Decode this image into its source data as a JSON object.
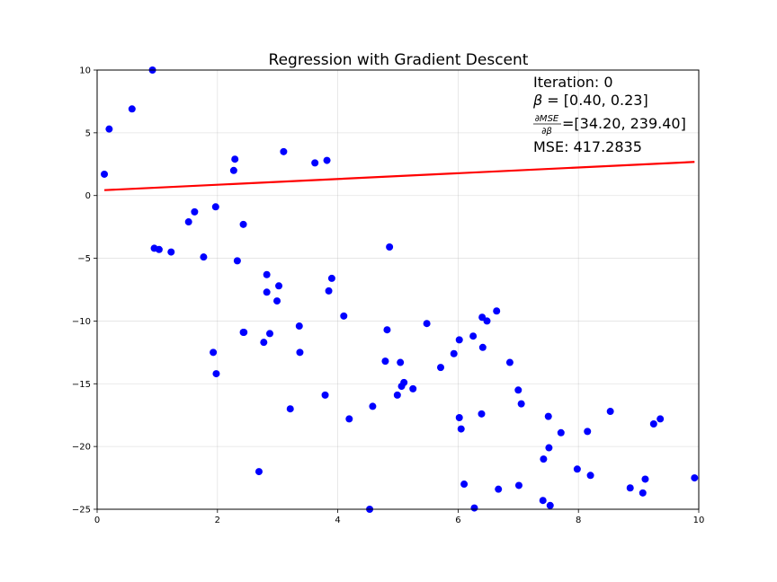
{
  "chart_data": {
    "type": "scatter",
    "title": "Regression with Gradient Descent",
    "xlabel": "",
    "ylabel": "",
    "xlim": [
      0,
      10
    ],
    "ylim": [
      -25,
      10
    ],
    "x_ticks": [
      0,
      2,
      4,
      6,
      8,
      10
    ],
    "y_ticks": [
      10,
      5,
      0,
      -5,
      -10,
      -15,
      -20,
      -25
    ],
    "x_tick_labels": [
      "0",
      "2",
      "4",
      "6",
      "8",
      "10"
    ],
    "y_tick_labels": [
      "10",
      "5",
      "0",
      "−5",
      "−10",
      "−15",
      "−20",
      "−25"
    ],
    "grid": true,
    "colors": {
      "points": "#0000ff",
      "line": "#ff0000"
    },
    "points": [
      [
        0.12,
        1.7
      ],
      [
        0.2,
        5.3
      ],
      [
        0.58,
        6.9
      ],
      [
        0.92,
        10.0
      ],
      [
        0.95,
        -4.2
      ],
      [
        1.03,
        -4.3
      ],
      [
        1.23,
        -4.5
      ],
      [
        1.52,
        -2.1
      ],
      [
        1.62,
        -1.3
      ],
      [
        1.77,
        -4.9
      ],
      [
        1.93,
        -12.5
      ],
      [
        1.97,
        -0.9
      ],
      [
        1.98,
        -14.2
      ],
      [
        2.27,
        2.0
      ],
      [
        2.29,
        2.9
      ],
      [
        2.33,
        -5.2
      ],
      [
        2.43,
        -2.3
      ],
      [
        2.44,
        -10.9
      ],
      [
        2.43,
        -10.9
      ],
      [
        2.69,
        -22.0
      ],
      [
        2.77,
        -11.7
      ],
      [
        2.82,
        -6.3
      ],
      [
        2.82,
        -7.7
      ],
      [
        2.87,
        -11.0
      ],
      [
        2.99,
        -8.4
      ],
      [
        3.02,
        -7.2
      ],
      [
        3.1,
        3.5
      ],
      [
        3.21,
        -17.0
      ],
      [
        3.36,
        -10.4
      ],
      [
        3.37,
        -12.5
      ],
      [
        3.62,
        2.6
      ],
      [
        3.79,
        -15.9
      ],
      [
        3.82,
        2.8
      ],
      [
        3.85,
        -7.6
      ],
      [
        3.9,
        -6.6
      ],
      [
        4.1,
        -9.6
      ],
      [
        4.19,
        -17.8
      ],
      [
        4.53,
        -25.0
      ],
      [
        4.58,
        -16.8
      ],
      [
        4.79,
        -13.2
      ],
      [
        4.82,
        -10.7
      ],
      [
        4.86,
        -4.1
      ],
      [
        4.99,
        -15.9
      ],
      [
        5.04,
        -13.3
      ],
      [
        5.06,
        -15.2
      ],
      [
        5.1,
        -14.9
      ],
      [
        5.25,
        -15.4
      ],
      [
        5.48,
        -10.2
      ],
      [
        5.71,
        -13.7
      ],
      [
        5.93,
        -12.6
      ],
      [
        6.02,
        -11.5
      ],
      [
        6.02,
        -17.7
      ],
      [
        6.05,
        -18.6
      ],
      [
        6.1,
        -23.0
      ],
      [
        6.25,
        -11.2
      ],
      [
        6.27,
        -24.9
      ],
      [
        6.39,
        -17.4
      ],
      [
        6.4,
        -9.7
      ],
      [
        6.41,
        -12.1
      ],
      [
        6.48,
        -10.0
      ],
      [
        6.64,
        -9.2
      ],
      [
        6.67,
        -23.4
      ],
      [
        6.86,
        -13.3
      ],
      [
        7.0,
        -15.5
      ],
      [
        7.01,
        -23.1
      ],
      [
        7.05,
        -16.6
      ],
      [
        7.41,
        -24.3
      ],
      [
        7.42,
        -21.0
      ],
      [
        7.5,
        -17.6
      ],
      [
        7.51,
        -20.1
      ],
      [
        7.53,
        -24.7
      ],
      [
        7.71,
        -18.9
      ],
      [
        7.98,
        -21.8
      ],
      [
        8.15,
        -18.8
      ],
      [
        8.2,
        -22.3
      ],
      [
        8.53,
        -17.2
      ],
      [
        8.86,
        -23.3
      ],
      [
        9.07,
        -23.7
      ],
      [
        9.11,
        -22.6
      ],
      [
        9.25,
        -18.2
      ],
      [
        9.36,
        -17.8
      ],
      [
        9.93,
        -22.5
      ]
    ],
    "regression_line": {
      "x": [
        0.12,
        9.93
      ],
      "y": [
        0.43,
        2.68
      ]
    },
    "annotations": {
      "iteration": "Iteration: 0",
      "beta_symbol": "β",
      "beta_text": " = [0.40, 0.23]",
      "grad_numerator": "∂MSE",
      "grad_denominator": "∂β",
      "grad_text": "=[34.20, 239.40]",
      "mse": "MSE: 417.2835"
    }
  }
}
